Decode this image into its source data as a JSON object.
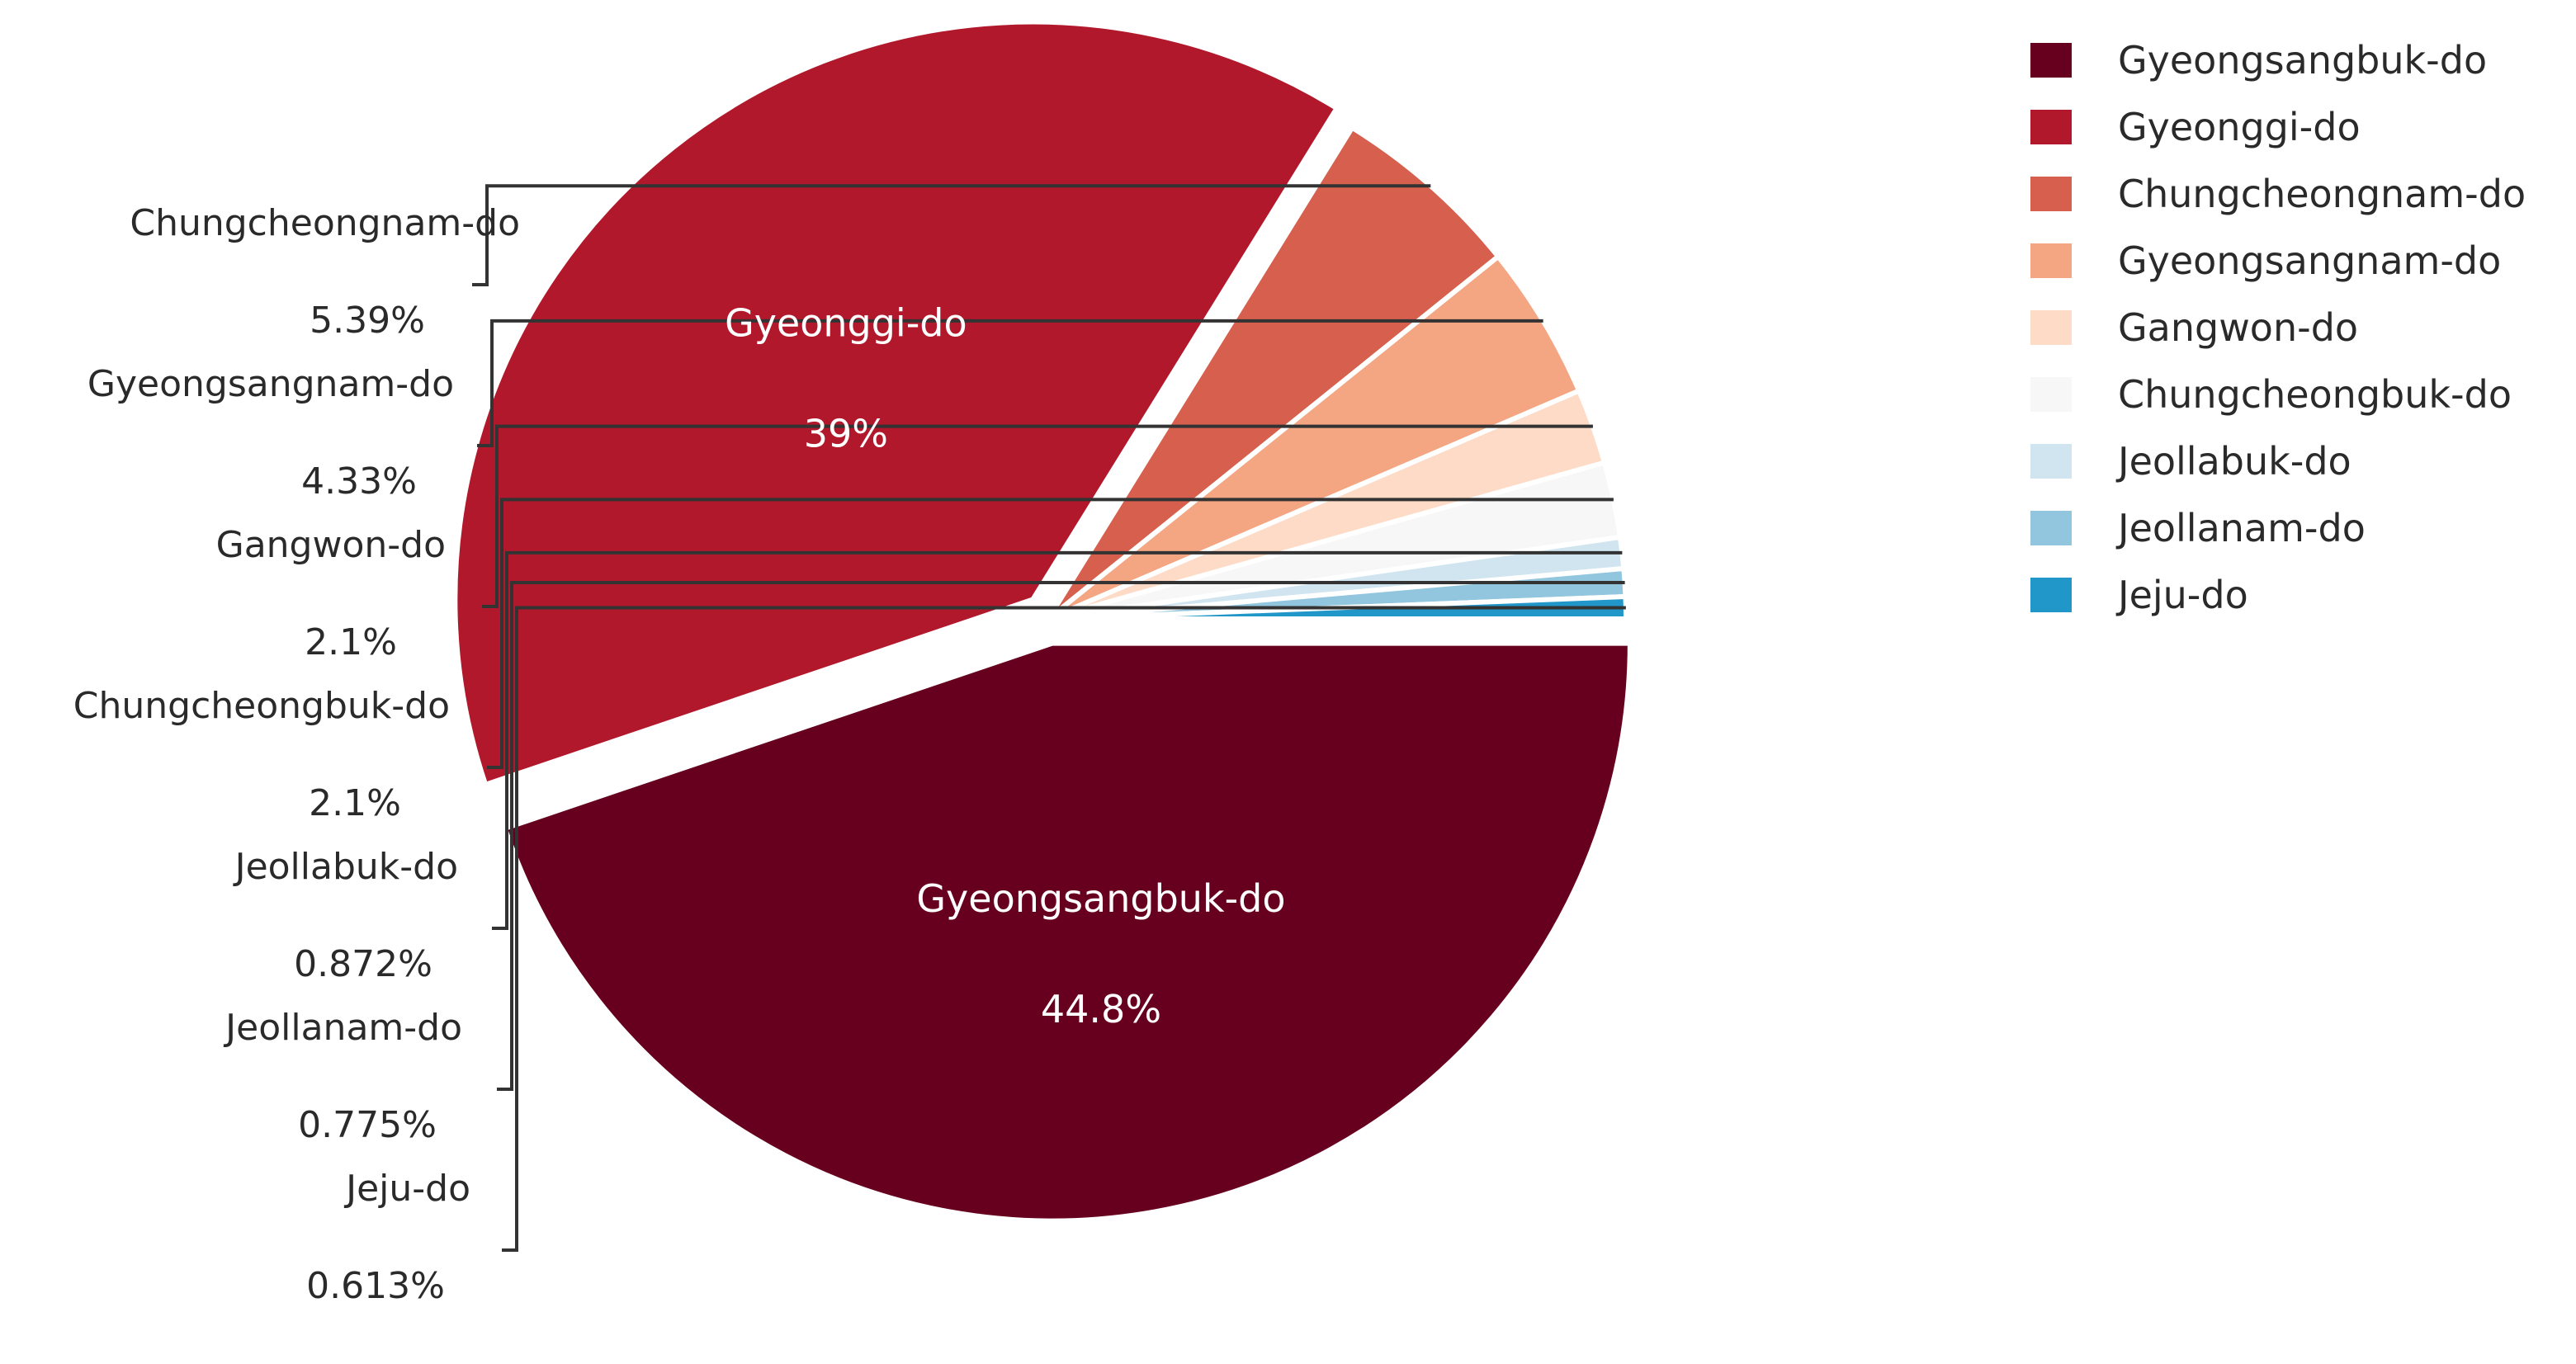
{
  "chart_data": {
    "type": "pie",
    "title": "",
    "slices": [
      {
        "label": "Gyeongsangbuk-do",
        "value": 44.8,
        "value_label": "44.8%",
        "color": "#67001f"
      },
      {
        "label": "Gyeonggi-do",
        "value": 39,
        "value_label": "39%",
        "color": "#b2182b"
      },
      {
        "label": "Chungcheongnam-do",
        "value": 5.39,
        "value_label": "5.39%",
        "color": "#d6604d"
      },
      {
        "label": "Gyeongsangnam-do",
        "value": 4.33,
        "value_label": "4.33%",
        "color": "#f4a582"
      },
      {
        "label": "Gangwon-do",
        "value": 2.1,
        "value_label": "2.1%",
        "color": "#fddbc7"
      },
      {
        "label": "Chungcheongbuk-do",
        "value": 2.1,
        "value_label": "2.1%",
        "color": "#f7f7f7"
      },
      {
        "label": "Jeollabuk-do",
        "value": 0.872,
        "value_label": "0.872%",
        "color": "#d1e5f0"
      },
      {
        "label": "Jeollanam-do",
        "value": 0.775,
        "value_label": "0.775%",
        "color": "#92c5de"
      },
      {
        "label": "Jeju-do",
        "value": 0.613,
        "value_label": "0.613%",
        "color": "#2196c8"
      }
    ],
    "legend": {
      "position": "top-right",
      "entries": [
        "Gyeongsangbuk-do",
        "Gyeonggi-do",
        "Chungcheongnam-do",
        "Gyeongsangnam-do",
        "Gangwon-do",
        "Chungcheongbuk-do",
        "Jeollabuk-do",
        "Jeollanam-do",
        "Jeju-do"
      ]
    }
  }
}
